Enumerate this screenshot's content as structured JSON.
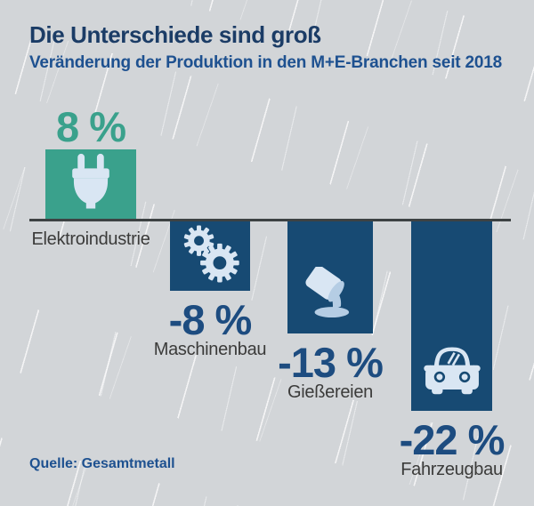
{
  "header": {
    "title": "Die Unterschiede sind groß",
    "subtitle": "Veränderung der Produktion in den M+E-Branchen seit 2018"
  },
  "footer": {
    "source": "Quelle: Gesamtmetall"
  },
  "colors": {
    "background": "#d2d5d8",
    "positive": "#3aa18c",
    "negative": "#174a73",
    "pct_negative": "#1d4c80",
    "title": "#1b3c66",
    "subtitle": "#1e5190",
    "category": "#3b3b3a",
    "axis": "#3d4243",
    "icon": "#d9e6f3",
    "icon_shade": "#b5cde4"
  },
  "chart_data": {
    "type": "bar",
    "title": "Die Unterschiede sind groß",
    "subtitle": "Veränderung der Produktion in den M+E-Branchen seit 2018",
    "unit": "%",
    "baseline": 0,
    "ylim": [
      -22,
      8
    ],
    "grid": false,
    "legend": false,
    "categories": [
      "Elektroindustrie",
      "Maschinenbau",
      "Gießereien",
      "Fahrzeugbau"
    ],
    "values": [
      8,
      -8,
      -13,
      -22
    ],
    "value_labels": [
      "8 %",
      "-8 %",
      "-13 %",
      "-22 %"
    ],
    "bar_colors": [
      "#3aa18c",
      "#174a73",
      "#174a73",
      "#174a73"
    ],
    "icons": [
      "plug-icon",
      "gears-icon",
      "casting-ladle-icon",
      "car-icon"
    ],
    "source": "Quelle: Gesamtmetall"
  }
}
